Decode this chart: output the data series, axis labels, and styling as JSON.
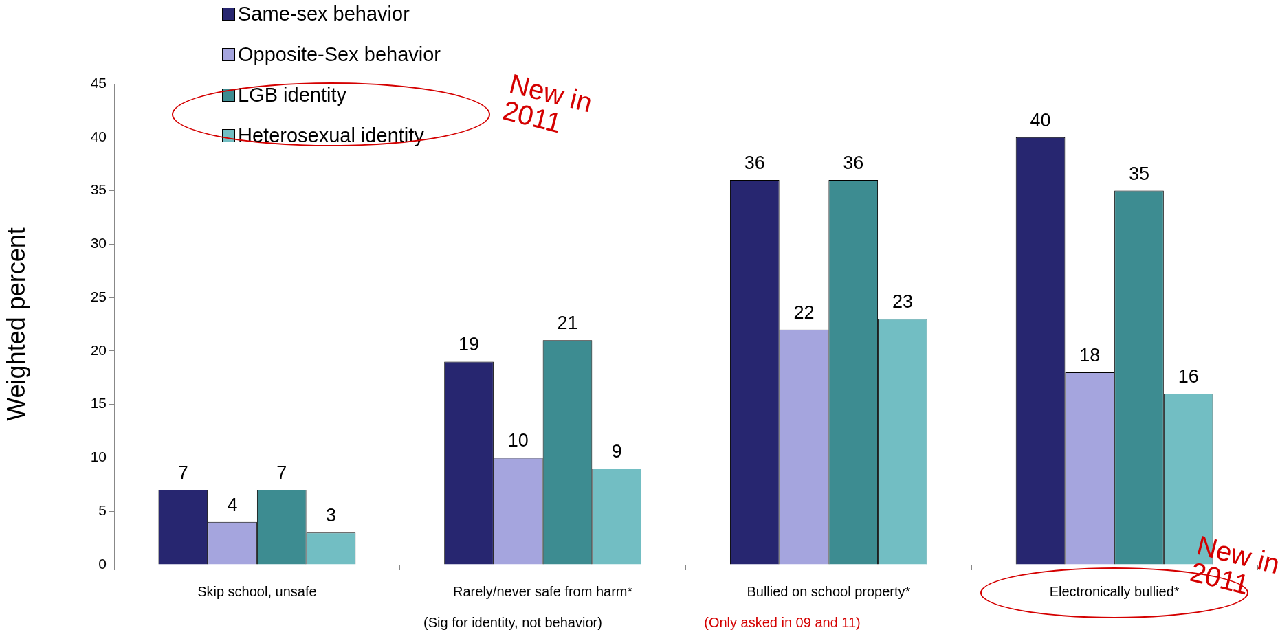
{
  "chart_data": {
    "type": "bar",
    "ylabel": "Weighted percent",
    "categories": [
      "Skip school, unsafe",
      "Rarely/never safe from harm*",
      "Bullied on school property*",
      "Electronically bullied*"
    ],
    "series": [
      {
        "name": "Same-sex behavior",
        "color": "#272670",
        "values": [
          7,
          19,
          36,
          40
        ]
      },
      {
        "name": "Opposite-Sex behavior",
        "color": "#a5a5de",
        "values": [
          4,
          10,
          22,
          18
        ]
      },
      {
        "name": "LGB identity",
        "color": "#3d8c91",
        "values": [
          7,
          21,
          36,
          35
        ]
      },
      {
        "name": "Heterosexual identity",
        "color": "#72bec3",
        "values": [
          3,
          9,
          23,
          16
        ]
      }
    ],
    "ylim": [
      0,
      45
    ],
    "yticks": [
      0,
      5,
      10,
      15,
      20,
      25,
      30,
      35,
      40,
      45
    ],
    "grid": false,
    "legend": "top left",
    "data_labels": true,
    "annotations": [
      "(Sig for identity, not behavior)",
      "(Only asked in 09 and 11)",
      "New in 2011",
      "New in 2011"
    ]
  }
}
